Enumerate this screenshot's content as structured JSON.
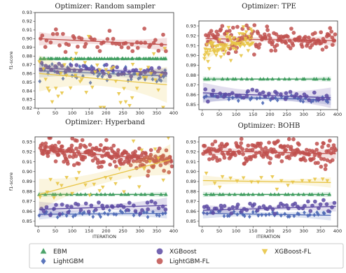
{
  "chart_data": [
    {
      "type": "scatter",
      "title": "Optimizer: Random sampler",
      "xlabel": "",
      "ylabel": "f1-score",
      "xlim": [
        -10,
        400
      ],
      "ylim": [
        0.82,
        0.93
      ],
      "xticks": [
        0,
        50,
        100,
        150,
        200,
        250,
        300,
        350,
        400
      ],
      "yticks": [
        0.82,
        0.83,
        0.84,
        0.85,
        0.86,
        0.87,
        0.88,
        0.89,
        0.9,
        0.91,
        0.92,
        0.93
      ],
      "grid": false,
      "series": [
        {
          "name": "EBM",
          "color": "#3a9a5b",
          "marker": "triangle-up",
          "xrange": [
            2,
            380
          ],
          "n": 52,
          "trend": [
            0.877,
            0.877
          ],
          "sd": 0.0,
          "band": 0.001
        },
        {
          "name": "LightGBM",
          "color": "#4a67b5",
          "marker": "diamond",
          "xrange": [
            2,
            380
          ],
          "n": 52,
          "trend": [
            0.863,
            0.857
          ],
          "sd": 0.005,
          "band": 0.003
        },
        {
          "name": "XGBoost",
          "color": "#5c4aa3",
          "marker": "circle",
          "xrange": [
            2,
            380
          ],
          "n": 52,
          "trend": [
            0.866,
            0.861
          ],
          "sd": 0.003,
          "band": 0.002
        },
        {
          "name": "LightGBM-FL",
          "color": "#c0504d",
          "marker": "circle",
          "xrange": [
            2,
            380
          ],
          "n": 52,
          "trend": [
            0.9,
            0.893
          ],
          "sd": 0.006,
          "band": 0.003
        },
        {
          "name": "XGBoost-FL",
          "color": "#e8c547",
          "marker": "triangle-down",
          "xrange": [
            2,
            380
          ],
          "n": 52,
          "trend": [
            0.86,
            0.847
          ],
          "sd": 0.018,
          "band": 0.008
        }
      ]
    },
    {
      "type": "scatter",
      "title": "Optimizer: TPE",
      "xlabel": "",
      "ylabel": "",
      "xlim": [
        -10,
        400
      ],
      "ylim": [
        0.845,
        0.935
      ],
      "xticks": [
        0,
        50,
        100,
        150,
        200,
        250,
        300,
        350,
        400
      ],
      "yticks": [
        0.85,
        0.86,
        0.87,
        0.88,
        0.89,
        0.9,
        0.91,
        0.92,
        0.93
      ],
      "grid": false,
      "series": [
        {
          "name": "EBM",
          "color": "#3a9a5b",
          "marker": "triangle-up",
          "xrange": [
            2,
            380
          ],
          "n": 24,
          "trend": [
            0.876,
            0.876
          ],
          "sd": 0.0,
          "band": 0.001
        },
        {
          "name": "LightGBM",
          "color": "#4a67b5",
          "marker": "diamond",
          "xrange": [
            2,
            380
          ],
          "n": 40,
          "trend": [
            0.858,
            0.855
          ],
          "sd": 0.002,
          "band": 0.002
        },
        {
          "name": "XGBoost",
          "color": "#5c4aa3",
          "marker": "circle",
          "xrange": [
            2,
            380
          ],
          "n": 40,
          "trend": [
            0.862,
            0.857
          ],
          "sd": 0.003,
          "band": 0.004
        },
        {
          "name": "LightGBM-FL",
          "color": "#c0504d",
          "marker": "circle",
          "xrange": [
            10,
            395
          ],
          "n": 150,
          "trend": [
            0.917,
            0.915
          ],
          "sd": 0.006,
          "band": 0.002
        },
        {
          "name": "XGBoost-FL",
          "color": "#e8c547",
          "marker": "triangle-down",
          "xrange": [
            5,
            150
          ],
          "n": 80,
          "trend": [
            0.902,
            0.918
          ],
          "sd": 0.006,
          "band": 0.003
        }
      ]
    },
    {
      "type": "scatter",
      "title": "Optimizer: Hyperband",
      "xlabel": "ITERATION",
      "ylabel": "f1-score",
      "xlim": [
        -10,
        400
      ],
      "ylim": [
        0.845,
        0.935
      ],
      "xticks": [
        0,
        50,
        100,
        150,
        200,
        250,
        300,
        350,
        400
      ],
      "yticks": [
        0.85,
        0.86,
        0.87,
        0.88,
        0.89,
        0.9,
        0.91,
        0.92,
        0.93
      ],
      "grid": false,
      "series": [
        {
          "name": "EBM",
          "color": "#3a9a5b",
          "marker": "triangle-up",
          "xrange": [
            2,
            380
          ],
          "n": 26,
          "trend": [
            0.877,
            0.877
          ],
          "sd": 0.0,
          "band": 0.001
        },
        {
          "name": "LightGBM",
          "color": "#4a67b5",
          "marker": "diamond",
          "xrange": [
            2,
            380
          ],
          "n": 40,
          "trend": [
            0.857,
            0.858
          ],
          "sd": 0.002,
          "band": 0.002
        },
        {
          "name": "XGBoost",
          "color": "#5c4aa3",
          "marker": "circle",
          "xrange": [
            2,
            380
          ],
          "n": 40,
          "trend": [
            0.862,
            0.866
          ],
          "sd": 0.003,
          "band": 0.003
        },
        {
          "name": "LightGBM-FL",
          "color": "#c0504d",
          "marker": "circle",
          "xrange": [
            5,
            395
          ],
          "n": 220,
          "trend": [
            0.922,
            0.911
          ],
          "sd": 0.006,
          "band": 0.002
        },
        {
          "name": "XGBoost-FL",
          "color": "#e8c547",
          "marker": "triangle-down",
          "xrange": [
            2,
            390
          ],
          "n": 30,
          "trend": [
            0.877,
            0.912
          ],
          "sd": 0.012,
          "band": 0.006
        }
      ]
    },
    {
      "type": "scatter",
      "title": "Optimizer: BOHB",
      "xlabel": "ITERATION",
      "ylabel": "",
      "xlim": [
        -10,
        400
      ],
      "ylim": [
        0.845,
        0.935
      ],
      "xticks": [
        0,
        50,
        100,
        150,
        200,
        250,
        300,
        350,
        400
      ],
      "yticks": [
        0.85,
        0.86,
        0.87,
        0.88,
        0.89,
        0.9,
        0.91,
        0.92,
        0.93
      ],
      "grid": false,
      "series": [
        {
          "name": "EBM",
          "color": "#3a9a5b",
          "marker": "triangle-up",
          "xrange": [
            2,
            380
          ],
          "n": 26,
          "trend": [
            0.877,
            0.877
          ],
          "sd": 0.0,
          "band": 0.001
        },
        {
          "name": "LightGBM",
          "color": "#4a67b5",
          "marker": "diamond",
          "xrange": [
            2,
            380
          ],
          "n": 40,
          "trend": [
            0.858,
            0.856
          ],
          "sd": 0.002,
          "band": 0.002
        },
        {
          "name": "XGBoost",
          "color": "#5c4aa3",
          "marker": "circle",
          "xrange": [
            2,
            395
          ],
          "n": 50,
          "trend": [
            0.861,
            0.865
          ],
          "sd": 0.003,
          "band": 0.002
        },
        {
          "name": "LightGBM-FL",
          "color": "#c0504d",
          "marker": "circle",
          "xrange": [
            2,
            395
          ],
          "n": 180,
          "trend": [
            0.921,
            0.918
          ],
          "sd": 0.006,
          "band": 0.002
        },
        {
          "name": "XGBoost-FL",
          "color": "#e8c547",
          "marker": "triangle-down",
          "xrange": [
            2,
            380
          ],
          "n": 20,
          "trend": [
            0.891,
            0.889
          ],
          "sd": 0.004,
          "band": 0.002
        }
      ]
    }
  ],
  "legend": {
    "placement": "bottom",
    "items": [
      {
        "label": "EBM",
        "color": "#3a9a5b",
        "marker": "triangle-up"
      },
      {
        "label": "LightGBM",
        "color": "#4a67b5",
        "marker": "diamond"
      },
      {
        "label": "XGBoost",
        "color": "#5c4aa3",
        "marker": "circle"
      },
      {
        "label": "LightGBM-FL",
        "color": "#c0504d",
        "marker": "circle"
      },
      {
        "label": "XGBoost-FL",
        "color": "#e8c547",
        "marker": "triangle-down"
      }
    ]
  }
}
